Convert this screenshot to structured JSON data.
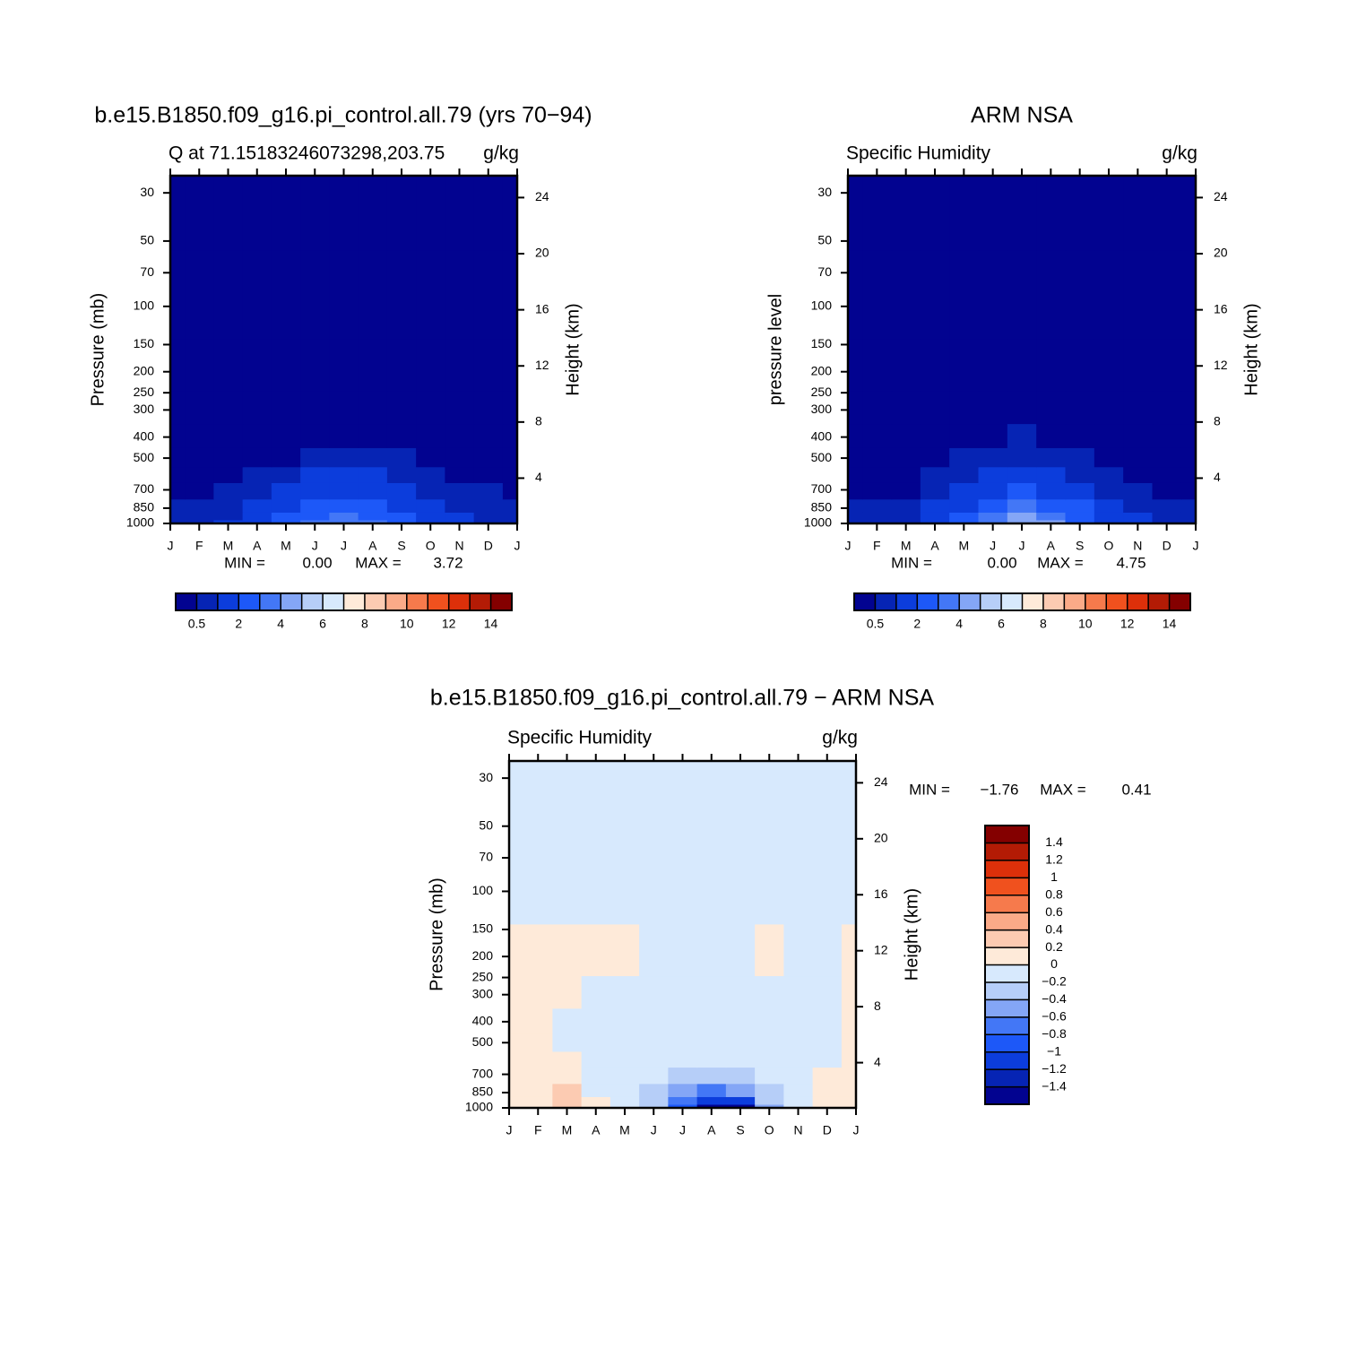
{
  "chart_data": [
    {
      "type": "contour",
      "title": "b.e15.B1850.f09_g16.pi_control.all.79 (yrs 70−94)",
      "subtitle_left": "Q at 71.15183246073298,203.75",
      "subtitle_right": "g/kg",
      "y_label": "Pressure (mb)",
      "y2_label": "Height (km)",
      "categories": [
        "J",
        "F",
        "M",
        "A",
        "M",
        "J",
        "J",
        "A",
        "S",
        "O",
        "N",
        "D",
        "J"
      ],
      "y": [
        1000,
        925,
        850,
        700,
        600,
        500,
        400,
        300,
        200,
        100,
        30
      ],
      "z": [
        [
          0.8,
          0.8,
          1.0,
          1.5,
          2.2,
          3.0,
          3.7,
          3.2,
          2.4,
          1.6,
          1.1,
          0.9,
          0.8
        ],
        [
          0.7,
          0.7,
          0.9,
          1.3,
          2.0,
          2.7,
          3.2,
          2.8,
          2.1,
          1.4,
          1.0,
          0.8,
          0.7
        ],
        [
          0.6,
          0.6,
          0.8,
          1.1,
          1.7,
          2.3,
          2.6,
          2.3,
          1.8,
          1.2,
          0.9,
          0.7,
          0.6
        ],
        [
          0.45,
          0.45,
          0.55,
          0.8,
          1.2,
          1.6,
          1.9,
          1.6,
          1.2,
          0.8,
          0.6,
          0.5,
          0.45
        ],
        [
          0.3,
          0.3,
          0.35,
          0.5,
          0.8,
          1.1,
          1.3,
          1.1,
          0.8,
          0.5,
          0.4,
          0.3,
          0.3
        ],
        [
          0.2,
          0.2,
          0.25,
          0.3,
          0.45,
          0.6,
          0.8,
          0.65,
          0.5,
          0.35,
          0.25,
          0.2,
          0.2
        ],
        [
          0.1,
          0.1,
          0.12,
          0.18,
          0.25,
          0.35,
          0.45,
          0.38,
          0.3,
          0.2,
          0.15,
          0.1,
          0.1
        ],
        [
          0.05,
          0.05,
          0.06,
          0.08,
          0.12,
          0.16,
          0.2,
          0.18,
          0.14,
          0.1,
          0.07,
          0.05,
          0.05
        ],
        [
          0.02,
          0.02,
          0.02,
          0.03,
          0.04,
          0.05,
          0.06,
          0.05,
          0.04,
          0.03,
          0.02,
          0.02,
          0.02
        ],
        [
          0.01,
          0.01,
          0.01,
          0.01,
          0.01,
          0.01,
          0.01,
          0.01,
          0.01,
          0.01,
          0.01,
          0.01,
          0.01
        ],
        [
          0.005,
          0.005,
          0.005,
          0.005,
          0.005,
          0.005,
          0.005,
          0.005,
          0.005,
          0.005,
          0.005,
          0.005,
          0.005
        ]
      ],
      "log_y": true,
      "ylim": [
        1000,
        25
      ],
      "yticks": [
        30,
        50,
        70,
        100,
        150,
        200,
        250,
        300,
        400,
        500,
        700,
        850,
        1000
      ],
      "y2lim": [
        0.77,
        25.56
      ],
      "y2ticks": [
        4,
        8,
        12,
        16,
        20,
        24
      ],
      "min_label": "MIN =",
      "min": {
        "value": 0,
        "label": "0.00"
      },
      "max_label": "MAX =",
      "max": {
        "value": 3.72,
        "label": "3.72"
      },
      "colorbar": {
        "orientation": "horizontal",
        "levels": [
          0.5,
          1,
          2,
          3,
          4,
          5,
          6,
          7,
          8,
          9,
          10,
          11,
          12,
          13,
          14
        ],
        "ticks": [
          0.5,
          2,
          4,
          6,
          8,
          10,
          12,
          14
        ],
        "colors": [
          "#020390",
          "#0624b4",
          "#0c3ddc",
          "#1d58f8",
          "#4377f6",
          "#84a6f6",
          "#b6cef8",
          "#d7e9fd",
          "#feead9",
          "#fccbb2",
          "#fbaa88",
          "#f67a4c",
          "#f0511e",
          "#dd300a",
          "#b31b05",
          "#840000"
        ]
      }
    },
    {
      "type": "contour",
      "title": "ARM NSA",
      "subtitle_left": "Specific Humidity",
      "subtitle_right": "g/kg",
      "y_label": "pressure level",
      "y2_label": "Height (km)",
      "categories": [
        "J",
        "F",
        "M",
        "A",
        "M",
        "J",
        "J",
        "A",
        "S",
        "O",
        "N",
        "D",
        "J"
      ],
      "y": [
        1000,
        925,
        850,
        700,
        600,
        500,
        400,
        300,
        200,
        100,
        30
      ],
      "z": [
        [
          0.9,
          0.9,
          0.7,
          1.3,
          2.2,
          3.3,
          4.7,
          4.2,
          2.8,
          1.8,
          1.2,
          0.9,
          0.9
        ],
        [
          0.8,
          0.8,
          0.6,
          1.2,
          2.0,
          3.0,
          4.0,
          3.6,
          2.4,
          1.6,
          1.1,
          0.8,
          0.8
        ],
        [
          0.7,
          0.7,
          0.6,
          1.1,
          1.8,
          2.6,
          3.2,
          2.9,
          2.0,
          1.3,
          0.9,
          0.7,
          0.7
        ],
        [
          0.45,
          0.45,
          0.45,
          0.8,
          1.3,
          1.8,
          2.1,
          1.9,
          1.4,
          0.9,
          0.6,
          0.45,
          0.45
        ],
        [
          0.3,
          0.3,
          0.3,
          0.5,
          0.9,
          1.2,
          1.4,
          1.3,
          0.9,
          0.6,
          0.4,
          0.3,
          0.3
        ],
        [
          0.2,
          0.2,
          0.2,
          0.3,
          0.5,
          0.7,
          0.9,
          0.8,
          0.6,
          0.35,
          0.25,
          0.2,
          0.2
        ],
        [
          0.1,
          0.1,
          0.1,
          0.18,
          0.28,
          0.4,
          0.5,
          0.45,
          0.32,
          0.2,
          0.15,
          0.1,
          0.1
        ],
        [
          0.05,
          0.05,
          0.05,
          0.08,
          0.12,
          0.17,
          0.22,
          0.2,
          0.15,
          0.1,
          0.07,
          0.05,
          0.05
        ],
        [
          0.02,
          0.02,
          0.02,
          0.03,
          0.04,
          0.05,
          0.06,
          0.05,
          0.04,
          0.03,
          0.02,
          0.02,
          0.02
        ],
        [
          0.01,
          0.01,
          0.01,
          0.01,
          0.01,
          0.01,
          0.01,
          0.01,
          0.01,
          0.01,
          0.01,
          0.01,
          0.01
        ],
        [
          0.005,
          0.005,
          0.005,
          0.005,
          0.005,
          0.005,
          0.005,
          0.005,
          0.005,
          0.005,
          0.005,
          0.005,
          0.005
        ]
      ],
      "log_y": true,
      "ylim": [
        1000,
        25
      ],
      "yticks": [
        30,
        50,
        70,
        100,
        150,
        200,
        250,
        300,
        400,
        500,
        700,
        850,
        1000
      ],
      "y2lim": [
        0.77,
        25.56
      ],
      "y2ticks": [
        4,
        8,
        12,
        16,
        20,
        24
      ],
      "min_label": "MIN =",
      "min": {
        "value": 0,
        "label": "0.00"
      },
      "max_label": "MAX =",
      "max": {
        "value": 4.75,
        "label": "4.75"
      },
      "colorbar": {
        "orientation": "horizontal",
        "levels": [
          0.5,
          1,
          2,
          3,
          4,
          5,
          6,
          7,
          8,
          9,
          10,
          11,
          12,
          13,
          14
        ],
        "ticks": [
          0.5,
          2,
          4,
          6,
          8,
          10,
          12,
          14
        ],
        "colors": [
          "#020390",
          "#0624b4",
          "#0c3ddc",
          "#1d58f8",
          "#4377f6",
          "#84a6f6",
          "#b6cef8",
          "#d7e9fd",
          "#feead9",
          "#fccbb2",
          "#fbaa88",
          "#f67a4c",
          "#f0511e",
          "#dd300a",
          "#b31b05",
          "#840000"
        ]
      }
    },
    {
      "type": "contour",
      "title": "b.e15.B1850.f09_g16.pi_control.all.79 − ARM NSA",
      "subtitle_left": "Specific Humidity",
      "subtitle_right": "g/kg",
      "y_label": "Pressure (mb)",
      "y2_label": "Height (km)",
      "categories": [
        "J",
        "F",
        "M",
        "A",
        "M",
        "J",
        "J",
        "A",
        "S",
        "O",
        "N",
        "D",
        "J"
      ],
      "y": [
        1000,
        925,
        850,
        700,
        600,
        500,
        400,
        300,
        200,
        100,
        30
      ],
      "z": [
        [
          0.05,
          0.1,
          0.35,
          0.05,
          -0.1,
          -0.3,
          -1.0,
          -1.6,
          -1.7,
          -0.6,
          -0.1,
          0.05,
          0.05
        ],
        [
          0.05,
          0.1,
          0.3,
          0.05,
          -0.1,
          -0.4,
          -0.8,
          -1.2,
          -1.1,
          -0.4,
          -0.1,
          0.05,
          0.05
        ],
        [
          0.05,
          0.1,
          0.25,
          -0.05,
          -0.05,
          -0.3,
          -0.5,
          -0.7,
          -0.6,
          -0.3,
          -0.1,
          0.05,
          0.05
        ],
        [
          0.05,
          0.05,
          0.05,
          -0.05,
          -0.05,
          -0.2,
          -0.3,
          -0.4,
          -0.3,
          -0.1,
          -0.05,
          0.05,
          0.05
        ],
        [
          0.05,
          0.05,
          0.05,
          -0.05,
          -0.05,
          -0.1,
          -0.1,
          -0.15,
          -0.1,
          -0.05,
          -0.05,
          -0.05,
          0.05
        ],
        [
          0.05,
          0.05,
          -0.05,
          -0.05,
          -0.05,
          -0.05,
          -0.05,
          -0.05,
          -0.05,
          -0.05,
          -0.05,
          -0.05,
          0.05
        ],
        [
          0.05,
          0.05,
          -0.05,
          -0.05,
          -0.05,
          -0.05,
          -0.05,
          -0.05,
          -0.05,
          -0.05,
          -0.05,
          -0.05,
          0.05
        ],
        [
          0.05,
          0.05,
          0.05,
          -0.05,
          -0.05,
          -0.05,
          -0.05,
          -0.05,
          -0.05,
          -0.05,
          -0.05,
          -0.05,
          0.05
        ],
        [
          0.05,
          0.05,
          0.05,
          0.05,
          0.05,
          -0.05,
          -0.05,
          -0.05,
          -0.05,
          0.05,
          -0.05,
          -0.05,
          0.05
        ],
        [
          -0.05,
          -0.05,
          -0.05,
          -0.05,
          -0.05,
          -0.05,
          -0.05,
          -0.05,
          -0.05,
          -0.05,
          -0.05,
          -0.05,
          -0.05
        ],
        [
          -0.05,
          -0.05,
          -0.05,
          -0.05,
          -0.05,
          -0.05,
          -0.05,
          -0.05,
          -0.05,
          -0.05,
          -0.05,
          -0.05,
          -0.05
        ]
      ],
      "log_y": true,
      "ylim": [
        1000,
        25
      ],
      "yticks": [
        30,
        50,
        70,
        100,
        150,
        200,
        250,
        300,
        400,
        500,
        700,
        850,
        1000
      ],
      "y2lim": [
        0.77,
        25.56
      ],
      "y2ticks": [
        4,
        8,
        12,
        16,
        20,
        24
      ],
      "min_label": "MIN =",
      "min": {
        "value": -1.76,
        "label": "−1.76"
      },
      "max_label": "MAX =",
      "max": {
        "value": 0.41,
        "label": "0.41"
      },
      "colorbar": {
        "orientation": "vertical",
        "levels": [
          -1.4,
          -1.2,
          -1,
          -0.8,
          -0.6,
          -0.4,
          -0.2,
          0,
          0.2,
          0.4,
          0.6,
          0.8,
          1,
          1.2,
          1.4
        ],
        "ticks": [
          {
            "value": -1.4,
            "label": "−1.4"
          },
          {
            "value": -1.2,
            "label": "−1.2"
          },
          {
            "value": -1,
            "label": "−1"
          },
          {
            "value": -0.8,
            "label": "−0.8"
          },
          {
            "value": -0.6,
            "label": "−0.6"
          },
          {
            "value": -0.4,
            "label": "−0.4"
          },
          {
            "value": -0.2,
            "label": "−0.2"
          },
          0,
          0.2,
          0.4,
          0.6,
          0.8,
          1,
          1.2,
          1.4
        ],
        "colors": [
          "#020390",
          "#0624b4",
          "#0c3ddc",
          "#1d58f8",
          "#4377f6",
          "#84a6f6",
          "#b6cef8",
          "#d7e9fd",
          "#feead9",
          "#fccbb2",
          "#fbaa88",
          "#f67a4c",
          "#f0511e",
          "#dd300a",
          "#b31b05",
          "#840000"
        ]
      }
    }
  ]
}
